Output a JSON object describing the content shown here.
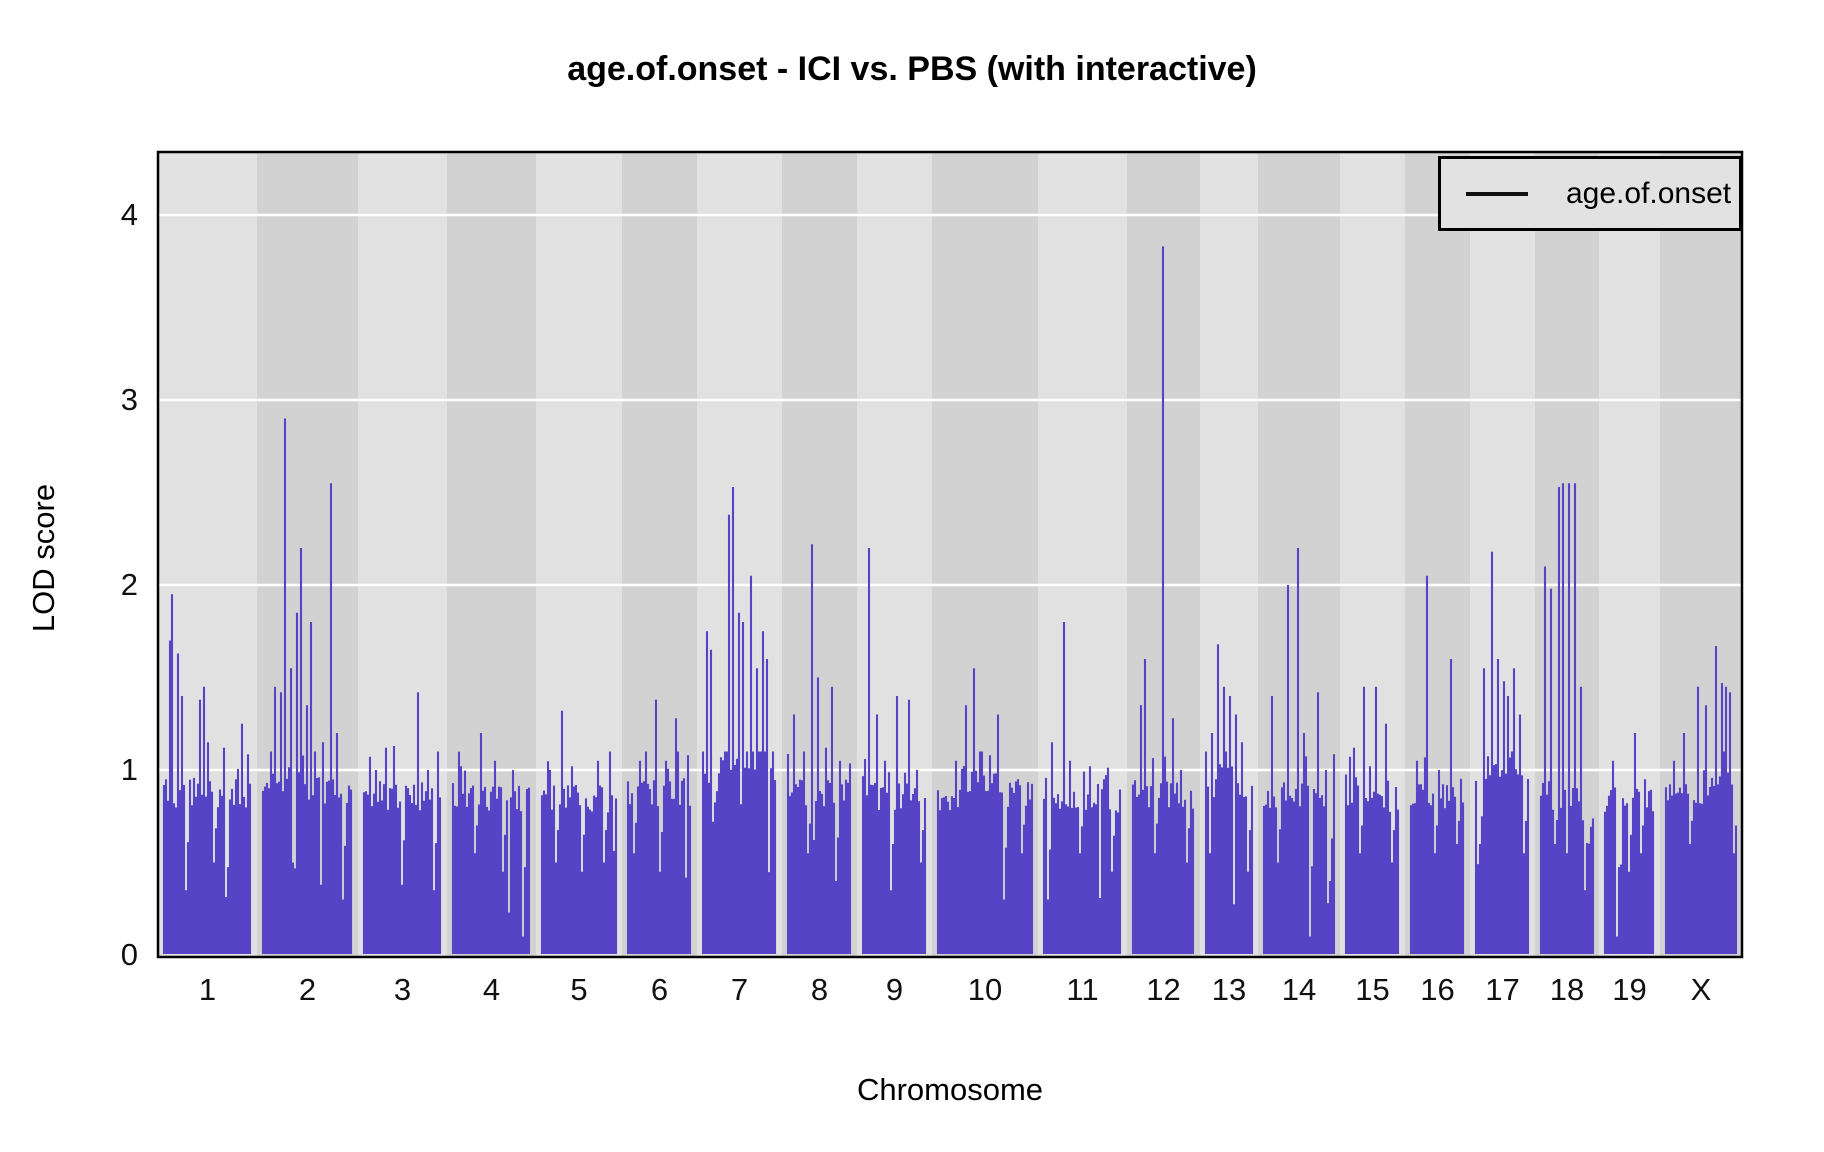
{
  "title": "age.of.onset - ICI vs. PBS (with interactive)",
  "axes": {
    "x_label": "Chromosome",
    "y_label": "LOD score",
    "y_ticks": [
      "0",
      "1",
      "2",
      "3",
      "4"
    ],
    "x_ticks": [
      "1",
      "2",
      "3",
      "4",
      "5",
      "6",
      "7",
      "8",
      "9",
      "10",
      "11",
      "12",
      "13",
      "14",
      "15",
      "16",
      "17",
      "18",
      "19",
      "X"
    ]
  },
  "legend": {
    "label": "age.of.onset",
    "position": "top-right"
  },
  "colors": {
    "series": "#5743C6",
    "band_light": "#e1e1e1",
    "band_dark": "#d2d2d2",
    "gridline": "#ffffff",
    "plot_border": "#000000",
    "legend_fill": "#e2e2e2",
    "background": "#ffffff",
    "text": "#000000"
  },
  "chart_data": {
    "type": "line",
    "title": "age.of.onset - ICI vs. PBS (with interactive)",
    "xlabel": "Chromosome",
    "ylabel": "LOD score",
    "ylim": [
      0,
      4.35
    ],
    "yticks": [
      0,
      1,
      2,
      3,
      4
    ],
    "grid": "horizontal-white-at-integer-LOD",
    "legend_entries": [
      "age.of.onset"
    ],
    "series_name": "age.of.onset",
    "overall_max": {
      "chromosome": "12",
      "lod": 3.83
    },
    "chromosomes": [
      {
        "name": "1",
        "rel_width": 99,
        "baseline": 0.87,
        "peaks": [
          [
            0.06,
            1.7
          ],
          [
            0.1,
            1.95
          ],
          [
            0.16,
            1.63
          ],
          [
            0.22,
            1.4
          ],
          [
            0.42,
            1.38
          ],
          [
            0.47,
            1.45
          ],
          [
            0.52,
            1.15
          ],
          [
            0.7,
            1.12
          ],
          [
            0.9,
            1.25
          ]
        ],
        "dips": [
          [
            0.25,
            0.35
          ],
          [
            0.58,
            0.5
          ],
          [
            0.71,
            0.08
          ]
        ],
        "elev": []
      },
      {
        "name": "2",
        "rel_width": 101,
        "baseline": 0.88,
        "peaks": [
          [
            0.08,
            1.1
          ],
          [
            0.14,
            1.45
          ],
          [
            0.2,
            1.42
          ],
          [
            0.26,
            2.9
          ],
          [
            0.31,
            1.55
          ],
          [
            0.38,
            1.85
          ],
          [
            0.44,
            2.2
          ],
          [
            0.49,
            1.35
          ],
          [
            0.55,
            1.8
          ],
          [
            0.6,
            1.1
          ],
          [
            0.68,
            1.15
          ],
          [
            0.77,
            2.55
          ],
          [
            0.83,
            1.2
          ]
        ],
        "dips": [
          [
            0.35,
            0.5
          ],
          [
            0.65,
            0.38
          ],
          [
            0.92,
            0.3
          ]
        ],
        "elev": [
          [
            0.1,
            0.5,
            0.06
          ]
        ]
      },
      {
        "name": "3",
        "rel_width": 89,
        "baseline": 0.86,
        "peaks": [
          [
            0.15,
            1.0
          ],
          [
            0.3,
            1.12
          ],
          [
            0.4,
            1.13
          ],
          [
            0.7,
            1.42
          ],
          [
            0.85,
            1.0
          ]
        ],
        "dips": [
          [
            0.5,
            0.38
          ],
          [
            0.92,
            0.35
          ]
        ],
        "elev": []
      },
      {
        "name": "4",
        "rel_width": 89,
        "baseline": 0.85,
        "peaks": [
          [
            0.1,
            1.02
          ],
          [
            0.37,
            1.2
          ],
          [
            0.55,
            1.05
          ],
          [
            0.8,
            1.0
          ]
        ],
        "dips": [
          [
            0.3,
            0.55
          ],
          [
            0.65,
            0.45
          ],
          [
            0.92,
            0.1
          ]
        ],
        "elev": []
      },
      {
        "name": "5",
        "rel_width": 86,
        "baseline": 0.85,
        "peaks": [
          [
            0.12,
            1.0
          ],
          [
            0.28,
            1.32
          ],
          [
            0.4,
            1.02
          ],
          [
            0.75,
            1.05
          ]
        ],
        "dips": [
          [
            0.2,
            0.5
          ],
          [
            0.55,
            0.45
          ],
          [
            0.85,
            0.5
          ]
        ],
        "elev": []
      },
      {
        "name": "6",
        "rel_width": 75,
        "baseline": 0.88,
        "peaks": [
          [
            0.18,
            1.05
          ],
          [
            0.3,
            1.1
          ],
          [
            0.44,
            1.38
          ],
          [
            0.6,
            1.05
          ],
          [
            0.78,
            1.28
          ]
        ],
        "dips": [
          [
            0.1,
            0.55
          ],
          [
            0.52,
            0.45
          ]
        ],
        "elev": []
      },
      {
        "name": "7",
        "rel_width": 85,
        "baseline": 0.93,
        "peaks": [
          [
            0.05,
            1.75
          ],
          [
            0.12,
            1.65
          ],
          [
            0.36,
            2.38
          ],
          [
            0.42,
            2.53
          ],
          [
            0.5,
            1.85
          ],
          [
            0.56,
            1.8
          ],
          [
            0.68,
            2.05
          ],
          [
            0.76,
            1.55
          ],
          [
            0.84,
            1.75
          ],
          [
            0.9,
            1.6
          ]
        ],
        "dips": [
          [
            0.15,
            0.72
          ],
          [
            0.51,
            0.7
          ]
        ],
        "elev": [
          [
            0.2,
            0.92,
            0.13
          ]
        ]
      },
      {
        "name": "8",
        "rel_width": 75,
        "baseline": 0.87,
        "peaks": [
          [
            0.1,
            1.3
          ],
          [
            0.25,
            1.1
          ],
          [
            0.4,
            2.22
          ],
          [
            0.48,
            1.5
          ],
          [
            0.6,
            1.12
          ],
          [
            0.7,
            1.45
          ],
          [
            0.85,
            1.05
          ]
        ],
        "dips": [
          [
            0.33,
            0.55
          ],
          [
            0.78,
            0.4
          ]
        ],
        "elev": []
      },
      {
        "name": "9",
        "rel_width": 75,
        "baseline": 0.85,
        "peaks": [
          [
            0.09,
            2.2
          ],
          [
            0.22,
            1.3
          ],
          [
            0.35,
            1.05
          ],
          [
            0.55,
            1.4
          ],
          [
            0.75,
            1.38
          ],
          [
            0.88,
            1.0
          ]
        ],
        "dips": [
          [
            0.45,
            0.35
          ],
          [
            0.93,
            0.5
          ]
        ],
        "elev": []
      },
      {
        "name": "10",
        "rel_width": 106,
        "baseline": 0.86,
        "peaks": [
          [
            0.2,
            1.05
          ],
          [
            0.3,
            1.35
          ],
          [
            0.38,
            1.55
          ],
          [
            0.45,
            1.1
          ],
          [
            0.55,
            1.08
          ],
          [
            0.63,
            1.3
          ],
          [
            0.85,
            0.95
          ]
        ],
        "dips": [
          [
            0.7,
            0.3
          ],
          [
            0.9,
            0.55
          ]
        ],
        "elev": [
          [
            0.25,
            0.65,
            0.1
          ]
        ]
      },
      {
        "name": "11",
        "rel_width": 89,
        "baseline": 0.84,
        "peaks": [
          [
            0.1,
            1.15
          ],
          [
            0.25,
            1.8
          ],
          [
            0.35,
            1.05
          ],
          [
            0.6,
            1.02
          ],
          [
            0.8,
            0.95
          ]
        ],
        "dips": [
          [
            0.05,
            0.3
          ],
          [
            0.48,
            0.55
          ],
          [
            0.9,
            0.45
          ]
        ],
        "elev": []
      },
      {
        "name": "12",
        "rel_width": 73,
        "baseline": 0.87,
        "peaks": [
          [
            0.12,
            1.35
          ],
          [
            0.2,
            1.6
          ],
          [
            0.51,
            3.83
          ],
          [
            0.65,
            1.28
          ],
          [
            0.8,
            1.0
          ]
        ],
        "dips": [
          [
            0.35,
            0.55
          ],
          [
            0.9,
            0.5
          ]
        ],
        "elev": []
      },
      {
        "name": "13",
        "rel_width": 58,
        "baseline": 0.9,
        "peaks": [
          [
            0.15,
            1.2
          ],
          [
            0.26,
            1.68
          ],
          [
            0.4,
            1.45
          ],
          [
            0.52,
            1.4
          ],
          [
            0.65,
            1.3
          ],
          [
            0.8,
            1.15
          ]
        ],
        "dips": [
          [
            0.08,
            0.55
          ],
          [
            0.9,
            0.45
          ]
        ],
        "elev": [
          [
            0.2,
            0.7,
            0.08
          ]
        ]
      },
      {
        "name": "14",
        "rel_width": 82,
        "baseline": 0.86,
        "peaks": [
          [
            0.1,
            1.4
          ],
          [
            0.33,
            2.0
          ],
          [
            0.48,
            2.2
          ],
          [
            0.58,
            1.2
          ],
          [
            0.76,
            1.42
          ],
          [
            0.88,
            1.0
          ]
        ],
        "dips": [
          [
            0.2,
            0.5
          ],
          [
            0.65,
            0.1
          ],
          [
            0.95,
            0.4
          ]
        ],
        "elev": []
      },
      {
        "name": "15",
        "rel_width": 65,
        "baseline": 0.85,
        "peaks": [
          [
            0.15,
            1.12
          ],
          [
            0.35,
            1.45
          ],
          [
            0.58,
            1.45
          ],
          [
            0.78,
            1.25
          ]
        ],
        "dips": [
          [
            0.25,
            0.55
          ],
          [
            0.88,
            0.5
          ]
        ],
        "elev": []
      },
      {
        "name": "16",
        "rel_width": 65,
        "baseline": 0.85,
        "peaks": [
          [
            0.12,
            1.05
          ],
          [
            0.31,
            2.05
          ],
          [
            0.55,
            1.0
          ],
          [
            0.77,
            1.6
          ]
        ],
        "dips": [
          [
            0.45,
            0.55
          ],
          [
            0.9,
            0.6
          ]
        ],
        "elev": []
      },
      {
        "name": "17",
        "rel_width": 65,
        "baseline": 0.9,
        "peaks": [
          [
            0.15,
            1.55
          ],
          [
            0.3,
            2.18
          ],
          [
            0.43,
            1.6
          ],
          [
            0.52,
            1.48
          ],
          [
            0.63,
            1.4
          ],
          [
            0.74,
            1.55
          ],
          [
            0.85,
            1.3
          ]
        ],
        "dips": [
          [
            0.08,
            0.6
          ],
          [
            0.93,
            0.55
          ]
        ],
        "elev": [
          [
            0.1,
            0.8,
            0.1
          ]
        ]
      },
      {
        "name": "18",
        "rel_width": 64,
        "baseline": 0.86,
        "peaks": [
          [
            0.08,
            2.1
          ],
          [
            0.2,
            1.98
          ],
          [
            0.33,
            2.53
          ],
          [
            0.44,
            2.55
          ],
          [
            0.55,
            2.55
          ],
          [
            0.64,
            2.55
          ],
          [
            0.75,
            1.45
          ]
        ],
        "dips": [
          [
            0.28,
            0.6
          ],
          [
            0.5,
            0.55
          ],
          [
            0.85,
            0.35
          ]
        ],
        "elev": [
          [
            0.8,
            1.0,
            -0.18
          ]
        ]
      },
      {
        "name": "19",
        "rel_width": 61,
        "baseline": 0.85,
        "peaks": [
          [
            0.15,
            1.05
          ],
          [
            0.62,
            1.2
          ],
          [
            0.85,
            0.95
          ]
        ],
        "dips": [
          [
            0.26,
            0.1
          ],
          [
            0.5,
            0.45
          ],
          [
            0.75,
            0.55
          ]
        ],
        "elev": []
      },
      {
        "name": "X",
        "rel_width": 82,
        "baseline": 0.85,
        "peaks": [
          [
            0.1,
            1.05
          ],
          [
            0.25,
            1.2
          ],
          [
            0.45,
            1.45
          ],
          [
            0.58,
            1.35
          ],
          [
            0.72,
            1.67
          ],
          [
            0.79,
            1.47
          ],
          [
            0.86,
            1.45
          ],
          [
            0.92,
            1.42
          ]
        ],
        "dips": [
          [
            0.35,
            0.6
          ],
          [
            0.96,
            0.55
          ]
        ],
        "elev": [
          [
            0.62,
            0.95,
            0.08
          ]
        ]
      }
    ]
  }
}
